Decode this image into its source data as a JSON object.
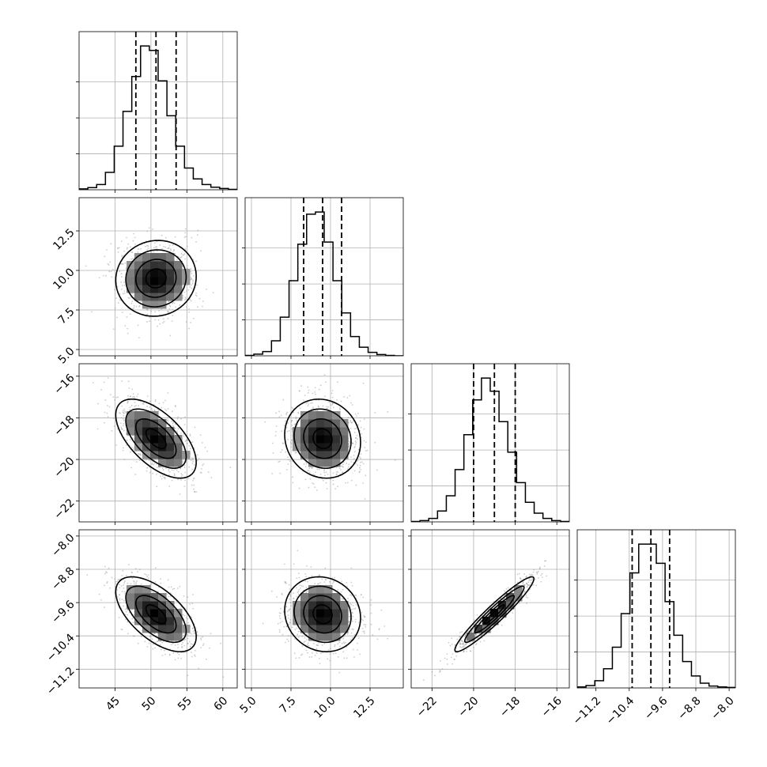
{
  "chart_data": {
    "type": "corner",
    "grid": true,
    "parameters": [
      {
        "index": 0,
        "range": [
          40,
          62
        ],
        "ticks": [
          45,
          50,
          55,
          60
        ],
        "tick_labels": [
          "45",
          "50",
          "55",
          "60"
        ],
        "mean": 50.7,
        "sd": 2.8,
        "quantiles": [
          47.9,
          50.7,
          53.5
        ]
      },
      {
        "index": 1,
        "range": [
          4.6,
          14.6
        ],
        "ticks": [
          5.0,
          7.5,
          10.0,
          12.5
        ],
        "tick_labels": [
          "5.0",
          "7.5",
          "10.0",
          "12.5"
        ],
        "mean": 9.5,
        "sd": 1.2,
        "quantiles": [
          8.3,
          9.5,
          10.7
        ]
      },
      {
        "index": 2,
        "range": [
          -23.0,
          -15.4
        ],
        "ticks": [
          -22,
          -20,
          -18,
          -16
        ],
        "tick_labels": [
          "−22",
          "−20",
          "−18",
          "−16"
        ],
        "mean": -19.0,
        "sd": 0.95,
        "quantiles": [
          -20.0,
          -19.0,
          -18.0
        ]
      },
      {
        "index": 3,
        "range": [
          -11.65,
          -7.85
        ],
        "ticks": [
          -11.2,
          -10.4,
          -9.6,
          -8.8,
          -8.0
        ],
        "tick_labels": [
          "−11.2",
          "−10.4",
          "−9.6",
          "−8.8",
          "−8.0"
        ],
        "mean": -9.88,
        "sd": 0.45,
        "quantiles": [
          -10.33,
          -9.88,
          -9.43
        ]
      }
    ],
    "correlations": [
      {
        "pair": [
          1,
          0
        ],
        "rho": 0.05
      },
      {
        "pair": [
          2,
          0
        ],
        "rho": -0.6
      },
      {
        "pair": [
          2,
          1
        ],
        "rho": -0.1
      },
      {
        "pair": [
          3,
          0
        ],
        "rho": -0.6
      },
      {
        "pair": [
          3,
          1
        ],
        "rho": -0.1
      },
      {
        "pair": [
          3,
          2
        ],
        "rho": 0.95
      }
    ],
    "histogram_counts": [
      [
        2,
        5,
        12,
        40,
        100,
        180,
        260,
        330,
        320,
        250,
        170,
        100,
        50,
        25,
        12,
        6,
        3,
        1
      ],
      [
        1,
        4,
        10,
        35,
        90,
        175,
        260,
        330,
        335,
        265,
        175,
        100,
        45,
        20,
        8,
        3,
        1,
        0
      ],
      [
        1,
        3,
        8,
        25,
        60,
        120,
        200,
        280,
        330,
        300,
        230,
        160,
        90,
        45,
        20,
        8,
        3,
        1
      ],
      [
        2,
        5,
        15,
        40,
        85,
        155,
        240,
        300,
        300,
        260,
        180,
        110,
        55,
        25,
        10,
        4,
        2,
        1
      ]
    ]
  }
}
